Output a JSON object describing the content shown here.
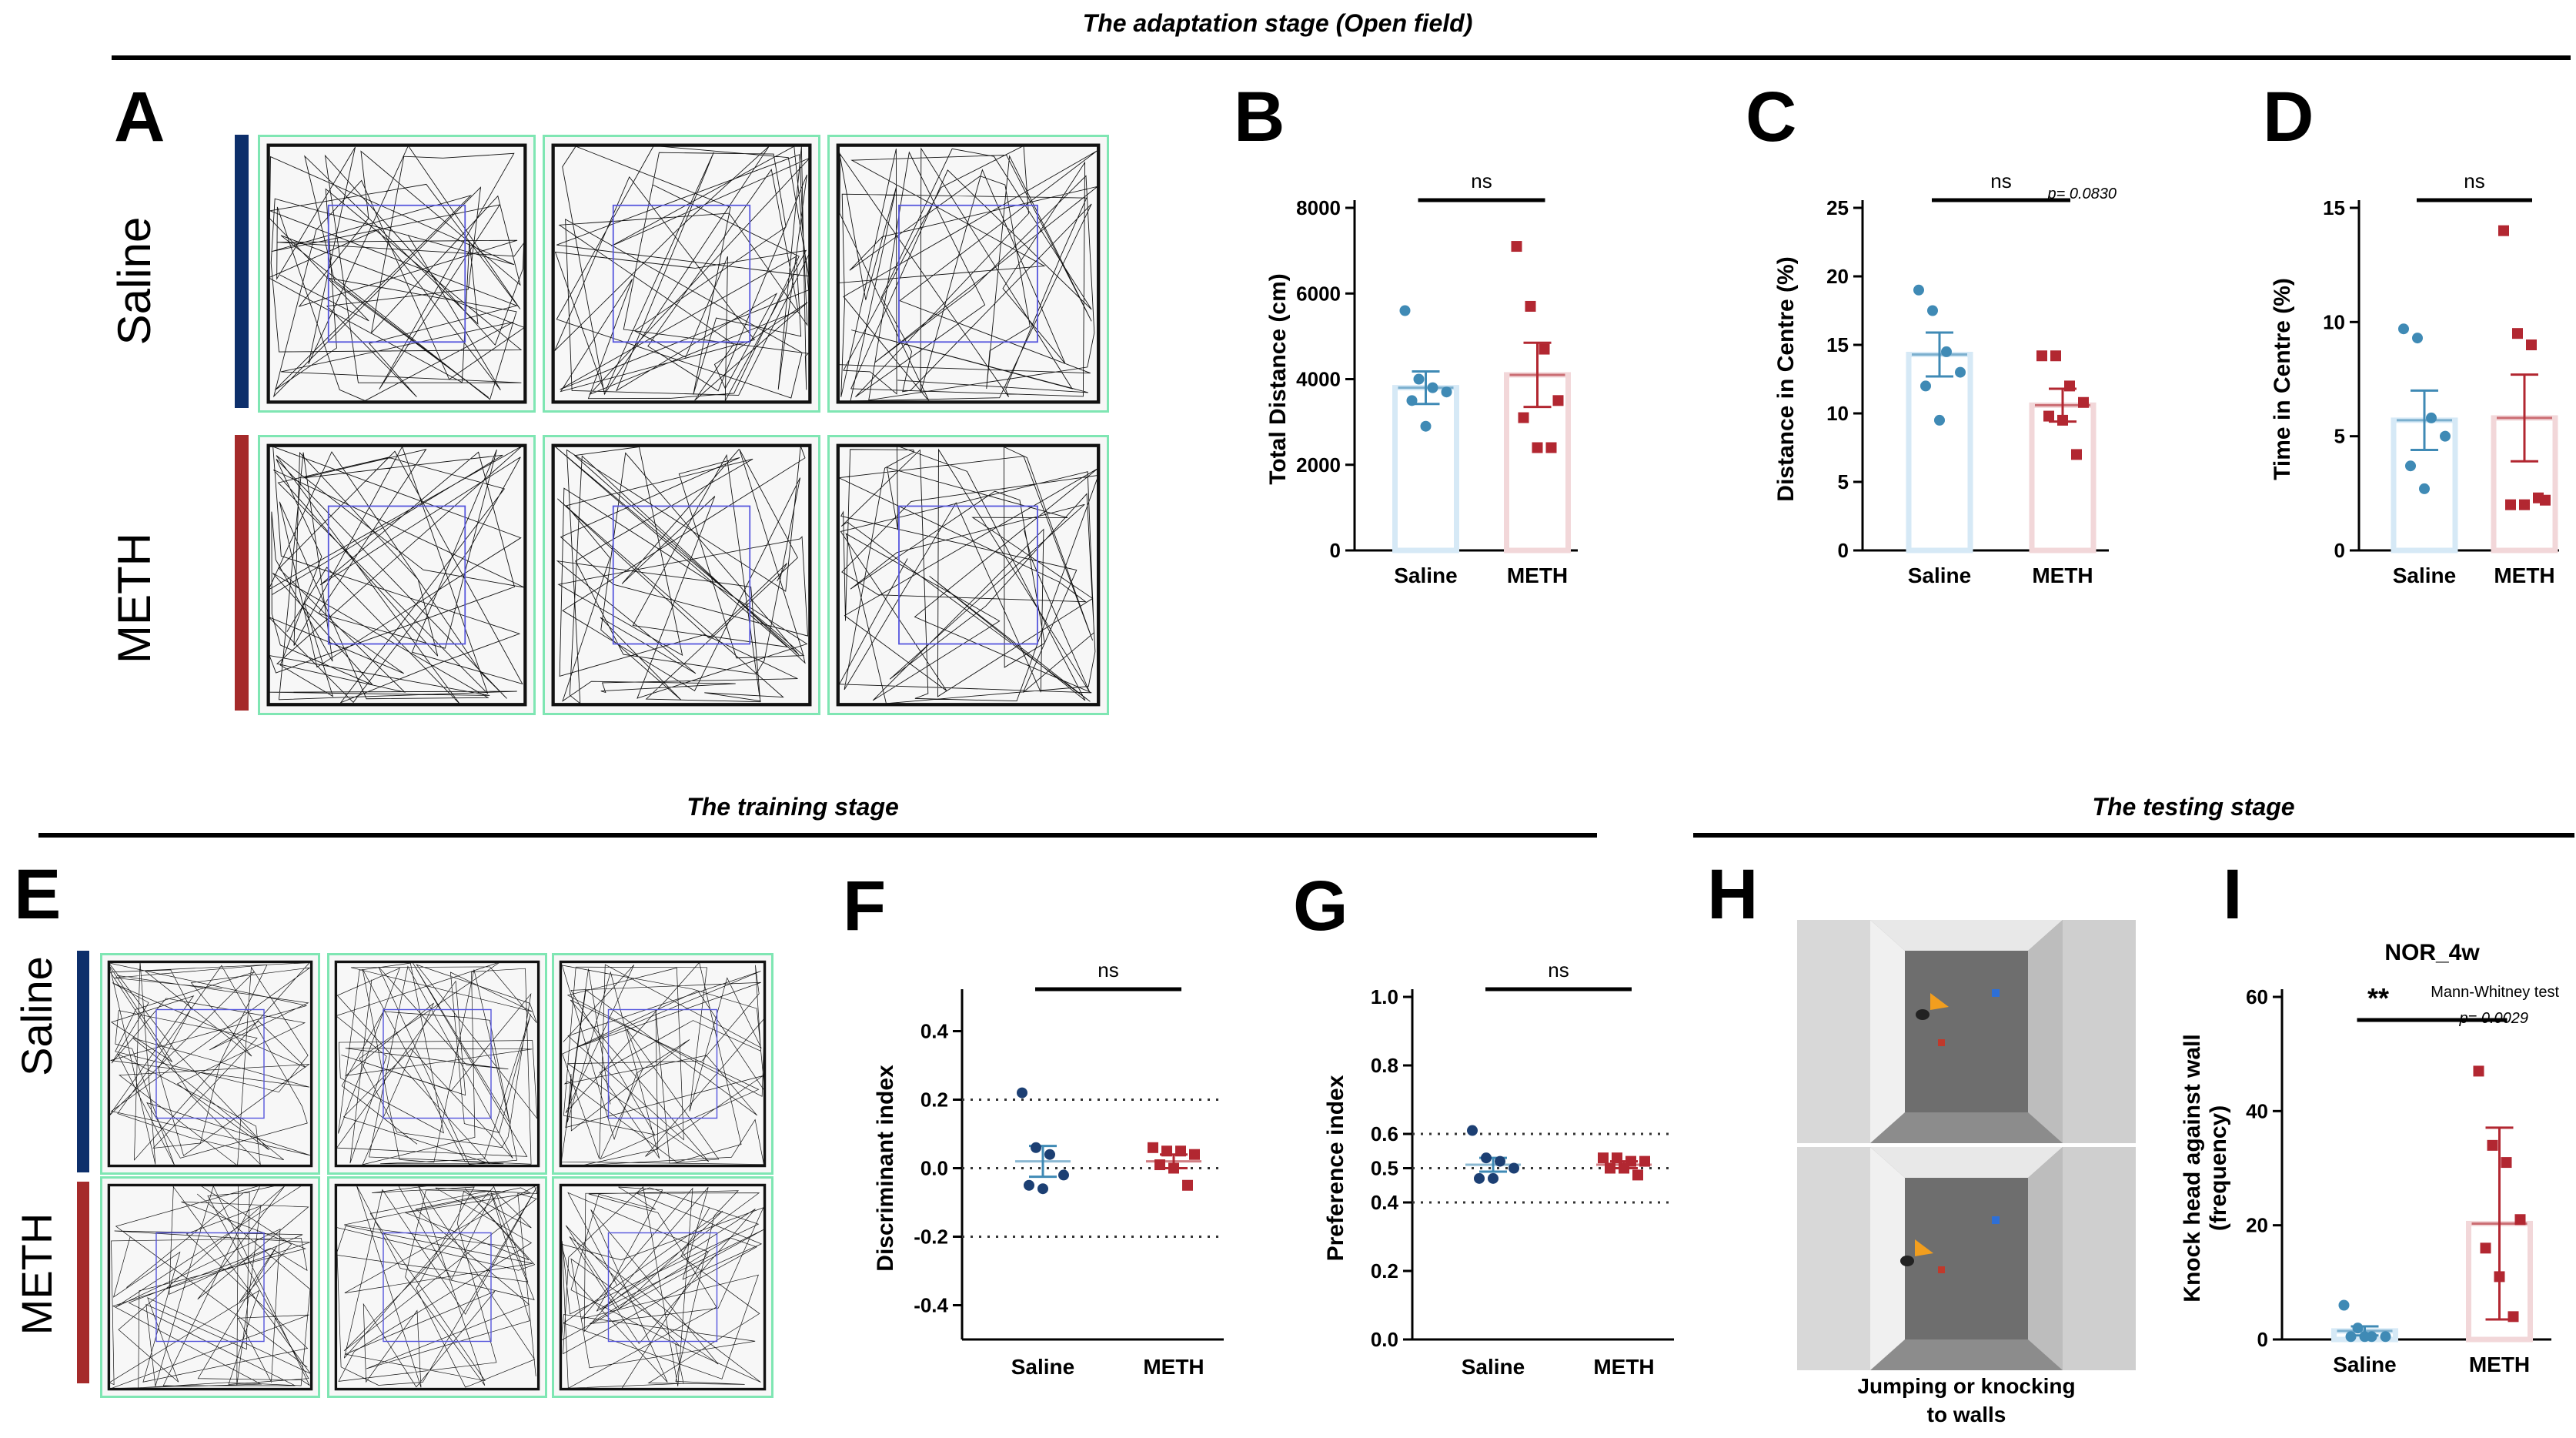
{
  "stages": {
    "adaptation": "The adaptation stage (Open field)",
    "training": "The training stage",
    "testing": "The testing stage"
  },
  "letters": {
    "A": "A",
    "B": "B",
    "C": "C",
    "D": "D",
    "E": "E",
    "F": "F",
    "G": "G",
    "H": "H",
    "I": "I"
  },
  "groups": {
    "saline": "Saline",
    "meth": "METH"
  },
  "colors": {
    "saline": "#3f8ab5",
    "meth": "#b22731",
    "saline_dark": "#1c3f73",
    "saline_fill": "#d6e9f6",
    "meth_fill": "#f2d7d9",
    "saline_bar": "#0d2f6b",
    "meth_bar": "#a52a2a"
  },
  "caption_H": [
    "Jumping or knocking",
    "to walls"
  ],
  "chart_data": [
    {
      "id": "B",
      "type": "bar",
      "categories": [
        "Saline",
        "METH"
      ],
      "means": [
        3800,
        4100
      ],
      "sem": [
        380,
        750
      ],
      "points": [
        [
          5600,
          4000,
          3800,
          3700,
          3500,
          2900
        ],
        [
          7100,
          5700,
          4700,
          3500,
          3100,
          2400,
          2400
        ]
      ],
      "ylabel": "Total Distance (cm)",
      "ylim": [
        0,
        8000
      ],
      "yticks": [
        0,
        2000,
        4000,
        6000,
        8000
      ],
      "annotation": "ns"
    },
    {
      "id": "C",
      "type": "bar",
      "categories": [
        "Saline",
        "METH"
      ],
      "means": [
        14.3,
        10.6
      ],
      "sem": [
        1.6,
        1.2
      ],
      "points": [
        [
          19,
          17.5,
          14.5,
          13,
          12,
          9.5
        ],
        [
          14.2,
          14.2,
          12,
          10.8,
          9.8,
          9.5,
          7
        ]
      ],
      "ylabel": "Distance in Centre (%)",
      "ylim": [
        0,
        25
      ],
      "yticks": [
        0,
        5,
        10,
        15,
        20,
        25
      ],
      "annotation": "ns",
      "pvalue": "p= 0.0830"
    },
    {
      "id": "D",
      "type": "bar",
      "categories": [
        "Saline",
        "METH"
      ],
      "means": [
        5.7,
        5.8
      ],
      "sem": [
        1.3,
        1.9
      ],
      "points": [
        [
          9.7,
          9.3,
          5.8,
          5.0,
          3.7,
          2.7
        ],
        [
          14.0,
          9.5,
          9.0,
          2.2,
          2.0,
          2.0,
          2.3
        ]
      ],
      "ylabel": "Time in Centre (%)",
      "ylim": [
        0,
        15
      ],
      "yticks": [
        0,
        5,
        10,
        15
      ],
      "annotation": "ns"
    },
    {
      "id": "F",
      "type": "scatter",
      "categories": [
        "Saline",
        "METH"
      ],
      "means": [
        0.02,
        0.02
      ],
      "sem": [
        0.045,
        0.02
      ],
      "points": [
        [
          0.22,
          0.06,
          0.04,
          -0.02,
          -0.05,
          -0.06
        ],
        [
          0.06,
          0.05,
          0.05,
          0.04,
          0.01,
          0.0,
          -0.05
        ]
      ],
      "ylabel": "Discriminant index",
      "ylim": [
        -0.5,
        0.5
      ],
      "yticks": [
        -0.4,
        -0.2,
        0.0,
        0.2,
        0.4
      ],
      "reflines": [
        -0.2,
        0.0,
        0.2
      ],
      "annotation": "ns"
    },
    {
      "id": "G",
      "type": "scatter",
      "categories": [
        "Saline",
        "METH"
      ],
      "means": [
        0.51,
        0.51
      ],
      "sem": [
        0.02,
        0.01
      ],
      "points": [
        [
          0.61,
          0.53,
          0.52,
          0.5,
          0.47,
          0.47
        ],
        [
          0.53,
          0.53,
          0.52,
          0.52,
          0.5,
          0.5,
          0.48
        ]
      ],
      "ylabel": "Preference index",
      "ylim": [
        0,
        1
      ],
      "yticks": [
        0.0,
        0.2,
        0.4,
        0.5,
        0.6,
        0.8,
        1.0
      ],
      "reflines": [
        0.4,
        0.5,
        0.6
      ],
      "annotation": "ns"
    },
    {
      "id": "I",
      "type": "bar",
      "title": "NOR_4w",
      "categories": [
        "Saline",
        "METH"
      ],
      "means": [
        1.5,
        20.3
      ],
      "sem": [
        0.8,
        16.8
      ],
      "points": [
        [
          6,
          2,
          0.5,
          0.5,
          0.5,
          0.5
        ],
        [
          47,
          34,
          31,
          21,
          16,
          11,
          4
        ]
      ],
      "ylabel": [
        "Knock head against wall",
        "(frequency)"
      ],
      "ylim": [
        0,
        60
      ],
      "yticks": [
        0,
        20,
        40,
        60
      ],
      "annotation": "**",
      "test": "Mann-Whitney test",
      "pvalue": "p= 0.0029"
    }
  ]
}
